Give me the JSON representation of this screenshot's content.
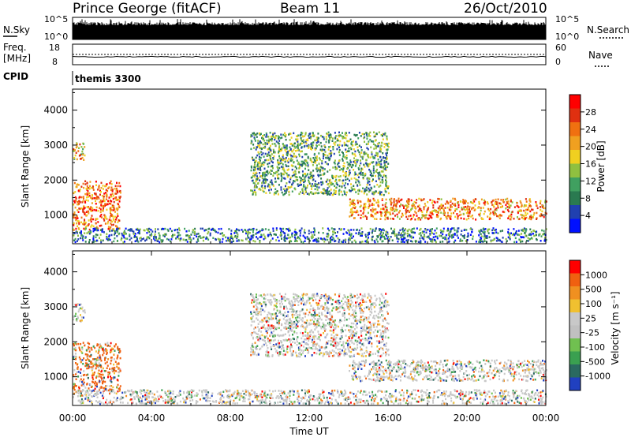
{
  "header": {
    "station": "Prince George (fitACF)",
    "beam": "Beam 11",
    "date": "26/Oct/2010"
  },
  "strips": {
    "nsky_label": "N.Sky",
    "nsky_ticks": [
      "10^5",
      "10^0"
    ],
    "nsearch_label": "N.Search",
    "nsearch_ticks": [
      "10^5",
      "10^0"
    ],
    "freq_label_line1": "Freq.",
    "freq_label_line2": "[MHz]",
    "freq_ticks": [
      "18",
      "8"
    ],
    "nave_label": "Nave",
    "nave_ticks": [
      "60",
      "0"
    ],
    "cpid_label": "CPID",
    "cpid_value": "themis 3300"
  },
  "axes": {
    "ylabel": "Slant Range [km]",
    "yticks": [
      "4000",
      "3000",
      "2000",
      "1000"
    ],
    "xticks": [
      "00:00",
      "04:00",
      "08:00",
      "12:00",
      "16:00",
      "20:00",
      "00:00"
    ],
    "xlabel": "Time UT"
  },
  "colorbars": {
    "power": {
      "label": "Power [dB]",
      "ticks": [
        "28",
        "24",
        "20",
        "16",
        "12",
        "8",
        "4"
      ],
      "colors": [
        "#0010ff",
        "#2040b0",
        "#2a7a50",
        "#40a060",
        "#90c040",
        "#f0d020",
        "#f0a020",
        "#f07010",
        "#e03010",
        "#ff0000"
      ]
    },
    "velocity": {
      "label": "Velocity [m s⁻¹]",
      "ticks": [
        "1000",
        "500",
        "100",
        "25",
        "-25",
        "-100",
        "-500",
        "-1000"
      ],
      "colors": [
        "#2040c0",
        "#2a6a60",
        "#3aa050",
        "#70c050",
        "#c0c0c0",
        "#c8c8c8",
        "#f0c030",
        "#f09020",
        "#f06010",
        "#ff0000"
      ]
    }
  },
  "chart_data": {
    "type": "heatmap",
    "x_range_hours": [
      0,
      24
    ],
    "y_range_km": [
      180,
      4600
    ],
    "regions": [
      {
        "name": "early-echoes",
        "t0": 0.0,
        "t1": 2.4,
        "r0": 600,
        "r1": 2000,
        "level": 0.75
      },
      {
        "name": "early-high",
        "t0": 0.0,
        "t1": 0.6,
        "r0": 2600,
        "r1": 3100,
        "level": 0.6
      },
      {
        "name": "near-range",
        "t0": 0.0,
        "t1": 24.0,
        "r0": 250,
        "r1": 650,
        "level": 0.25
      },
      {
        "name": "mid-arc",
        "t0": 9.0,
        "t1": 16.0,
        "r0": 1600,
        "r1": 3400,
        "level": 0.35
      },
      {
        "name": "late-band",
        "t0": 14.0,
        "t1": 24.0,
        "r0": 900,
        "r1": 1500,
        "level": 0.7
      }
    ]
  }
}
